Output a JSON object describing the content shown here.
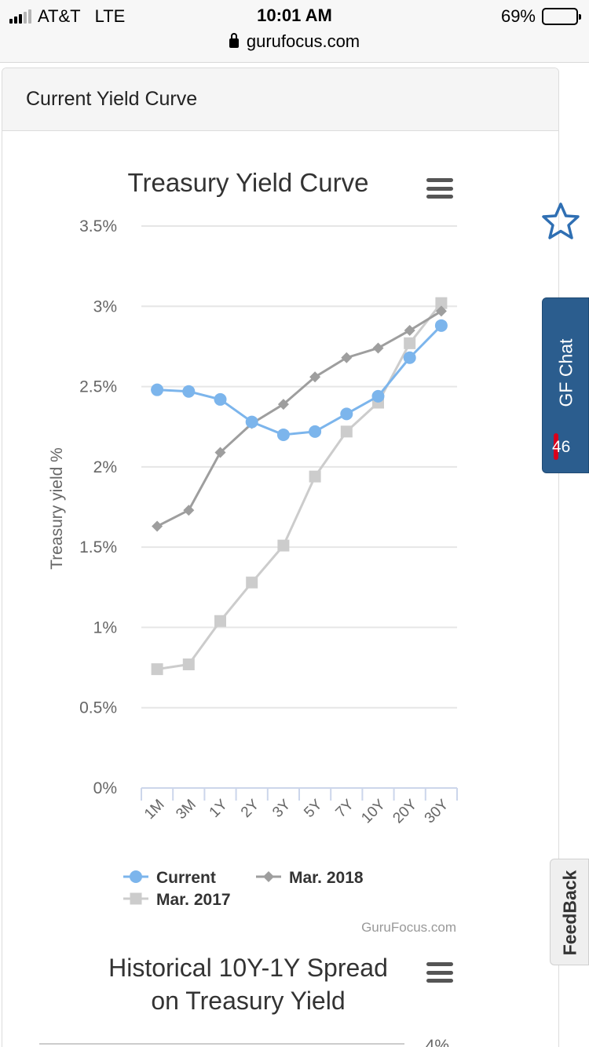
{
  "status_bar": {
    "carrier": "AT&T",
    "network": "LTE",
    "time": "10:01 AM",
    "battery": "69%",
    "battery_level": 0.69
  },
  "browser": {
    "url": "gurufocus.com"
  },
  "panel": {
    "title": "Current Yield Curve"
  },
  "chart_menu_icon": "menu-icon",
  "chart_data": [
    {
      "type": "line",
      "title": "Treasury Yield Curve",
      "ylabel": "Treasury yield %",
      "xlabel": "",
      "categories": [
        "1M",
        "3M",
        "1Y",
        "2Y",
        "3Y",
        "5Y",
        "7Y",
        "10Y",
        "20Y",
        "30Y"
      ],
      "ylim": [
        0,
        3.5
      ],
      "yticks": [
        "0%",
        "0.5%",
        "1%",
        "1.5%",
        "2%",
        "2.5%",
        "3%",
        "3.5%"
      ],
      "grid": true,
      "legend_position": "bottom",
      "credit": "GuruFocus.com",
      "series": [
        {
          "name": "Mar. 2017",
          "marker": "square",
          "color": "#cccccc",
          "values": [
            0.74,
            0.77,
            1.04,
            1.28,
            1.51,
            1.94,
            2.22,
            2.4,
            2.77,
            3.02
          ]
        },
        {
          "name": "Mar. 2018",
          "marker": "diamond",
          "color": "#9e9e9e",
          "values": [
            1.63,
            1.73,
            2.09,
            2.27,
            2.39,
            2.56,
            2.68,
            2.74,
            2.85,
            2.97
          ]
        },
        {
          "name": "Current",
          "marker": "circle",
          "color": "#7cb5ec",
          "values": [
            2.48,
            2.47,
            2.42,
            2.28,
            2.2,
            2.22,
            2.33,
            2.44,
            2.68,
            2.88
          ]
        }
      ]
    },
    {
      "type": "line",
      "title": "Historical 10Y-1Y Spread on Treasury Yield",
      "title_lines": [
        "Historical 10Y-1Y Spread",
        "on Treasury Yield"
      ],
      "ytick_top": "4%"
    }
  ],
  "side_widgets": {
    "star_icon": "star-outline-icon",
    "gf_chat": {
      "label": "GF Chat",
      "count": "46"
    },
    "feedback": {
      "label": "FeedBack"
    }
  }
}
